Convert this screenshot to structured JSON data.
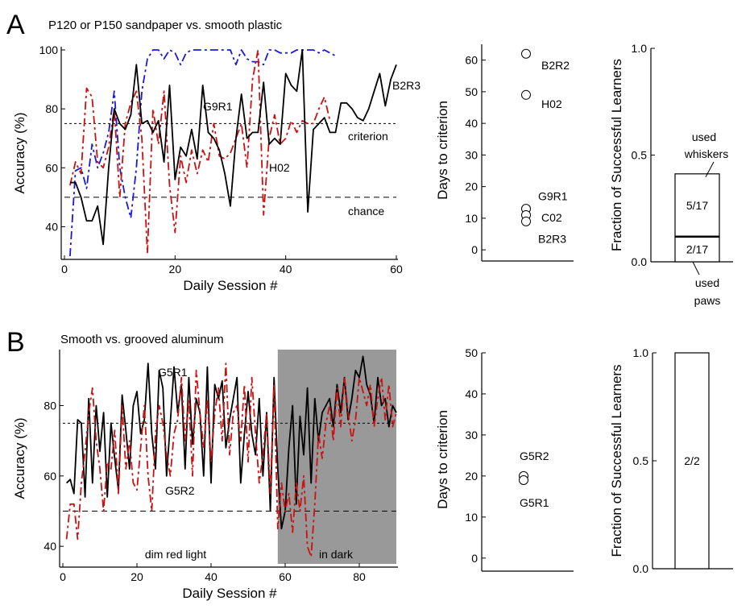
{
  "panels": [
    {
      "label": "A",
      "title": "P120 or P150 sandpaper vs. smooth plastic"
    },
    {
      "label": "B",
      "title": "Smooth vs. grooved aluminum"
    }
  ],
  "chart_data": [
    {
      "id": "A-accuracy",
      "type": "line",
      "xlabel": "Daily Session #",
      "ylabel": "Accuracy (%)",
      "xlim": [
        0,
        60
      ],
      "ylim": [
        30,
        100
      ],
      "xticks": [
        "0",
        "20",
        "40",
        "60"
      ],
      "yticks": [
        "40",
        "60",
        "80",
        "100"
      ],
      "hlines": [
        {
          "y": 75,
          "label": "criterion",
          "style": "dotted"
        },
        {
          "y": 50,
          "label": "chance",
          "style": "dashed"
        }
      ],
      "series": [
        {
          "name": "G9R1",
          "color": "#1a1ad6",
          "style": "dashdot",
          "x": [
            1,
            2,
            3,
            4,
            5,
            6,
            7,
            8,
            9,
            10,
            11,
            12,
            13,
            14,
            15,
            16,
            17,
            18,
            19,
            20,
            21,
            22,
            23,
            24,
            25,
            26,
            27,
            28,
            29,
            30,
            31,
            32,
            33,
            34,
            35,
            36,
            37,
            38,
            39,
            40,
            41,
            42,
            43,
            44,
            45,
            46,
            47,
            48,
            49
          ],
          "y": [
            30,
            59,
            60,
            53,
            68,
            60,
            65,
            72,
            86,
            60,
            50,
            43,
            60,
            86,
            97,
            100,
            100,
            97,
            100,
            99,
            95,
            99,
            100,
            100,
            100,
            100,
            100,
            100,
            100,
            100,
            95,
            100,
            97,
            96,
            96,
            95,
            100,
            100,
            99,
            99,
            99,
            100,
            100,
            100,
            100,
            99,
            100,
            99,
            98
          ]
        },
        {
          "name": "H02",
          "color": "#cc1111",
          "style": "dashdot",
          "x": [
            1,
            2,
            3,
            4,
            5,
            6,
            7,
            8,
            9,
            10,
            11,
            12,
            13,
            14,
            15,
            16,
            17,
            18,
            19,
            20,
            21,
            22,
            23,
            24,
            25,
            26,
            27,
            28,
            29,
            30,
            31,
            32,
            33,
            34,
            35,
            36,
            37,
            38,
            39,
            40,
            41,
            42,
            43,
            44,
            45,
            46,
            47,
            48
          ],
          "y": [
            54,
            62,
            58,
            87,
            84,
            62,
            60,
            67,
            80,
            50,
            75,
            82,
            86,
            70,
            31,
            80,
            68,
            86,
            54,
            38,
            64,
            55,
            66,
            58,
            66,
            62,
            75,
            64,
            63,
            65,
            70,
            75,
            60,
            90,
            100,
            44,
            70,
            78,
            68,
            70,
            76,
            72,
            76,
            75,
            75,
            80,
            84,
            76
          ]
        },
        {
          "name": "B2R3",
          "color": "#000000",
          "style": "solid",
          "x": [
            1,
            2,
            3,
            4,
            5,
            6,
            7,
            8,
            9,
            10,
            11,
            12,
            13,
            14,
            15,
            16,
            17,
            18,
            19,
            20,
            21,
            22,
            23,
            24,
            25,
            26,
            27,
            28,
            29,
            30,
            31,
            32,
            33,
            34,
            35,
            36,
            37,
            38,
            39,
            40,
            41,
            42,
            43,
            44,
            45,
            46,
            47,
            48,
            49,
            50,
            51,
            52,
            53,
            54,
            55,
            56,
            57,
            58,
            59,
            60
          ],
          "y": [
            55,
            55,
            50,
            42,
            42,
            47,
            34,
            60,
            80,
            75,
            73,
            78,
            95,
            75,
            76,
            72,
            76,
            62,
            88,
            56,
            67,
            64,
            73,
            63,
            88,
            72,
            70,
            66,
            58,
            47,
            70,
            85,
            70,
            72,
            72,
            89,
            68,
            70,
            68,
            92,
            88,
            86,
            100,
            45,
            73,
            75,
            77,
            72,
            72,
            82,
            82,
            80,
            77,
            76,
            80,
            86,
            92,
            81,
            90,
            95
          ]
        }
      ],
      "annotations": [
        "G9R1",
        "H02",
        "B2R3",
        "criterion",
        "chance"
      ]
    },
    {
      "id": "A-days",
      "type": "scatter",
      "ylabel": "Days to criterion",
      "ylim": [
        -2,
        65
      ],
      "yticks": [
        "0",
        "10",
        "20",
        "30",
        "40",
        "50",
        "60"
      ],
      "points": [
        {
          "label": "B2R2",
          "y": 62
        },
        {
          "label": "H02",
          "y": 49
        },
        {
          "label": "G9R1",
          "y": 13
        },
        {
          "label": "C02",
          "y": 11
        },
        {
          "label": "B2R3",
          "y": 9
        }
      ]
    },
    {
      "id": "A-fraction",
      "type": "bar",
      "ylabel": "Fraction of Successful Learners",
      "ylim": [
        0,
        1.0
      ],
      "yticks": [
        "0.0",
        "0.5",
        "1.0"
      ],
      "stack": [
        {
          "label": "2/17",
          "value": 0.118,
          "note": "used paws"
        },
        {
          "label": "5/17",
          "value": 0.294,
          "note": "used whiskers"
        }
      ],
      "annotations": [
        "used",
        "whiskers",
        "used",
        "paws"
      ]
    },
    {
      "id": "B-accuracy",
      "type": "line",
      "xlabel": "Daily Session #",
      "ylabel": "Accuracy (%)",
      "xlim": [
        0,
        90
      ],
      "ylim": [
        35,
        95
      ],
      "xticks": [
        "0",
        "20",
        "40",
        "60",
        "80"
      ],
      "yticks": [
        "40",
        "60",
        "80"
      ],
      "hlines": [
        {
          "y": 75,
          "style": "dotted"
        },
        {
          "y": 50,
          "style": "dashed"
        }
      ],
      "shaded_region": {
        "x": [
          58,
          90
        ],
        "label": "in dark"
      },
      "region_labels": [
        "dim red light",
        "in dark"
      ],
      "series": [
        {
          "name": "G5R1",
          "color": "#000000",
          "style": "solid",
          "x": [
            1,
            2,
            3,
            4,
            5,
            6,
            7,
            8,
            9,
            10,
            11,
            12,
            13,
            14,
            15,
            16,
            17,
            18,
            19,
            20,
            21,
            22,
            23,
            24,
            25,
            26,
            27,
            28,
            29,
            30,
            31,
            32,
            33,
            34,
            35,
            36,
            37,
            38,
            39,
            40,
            41,
            42,
            43,
            44,
            45,
            46,
            47,
            48,
            49,
            50,
            51,
            52,
            53,
            54,
            55,
            56,
            57,
            58,
            59,
            60,
            61,
            62,
            63,
            64,
            65,
            66,
            67,
            68,
            69,
            70,
            71,
            72,
            73,
            74,
            75,
            76,
            77,
            78,
            79,
            80,
            81,
            82,
            83,
            84,
            85,
            86,
            87,
            88,
            89,
            90
          ],
          "y": [
            58,
            59,
            55,
            76,
            75,
            54,
            82,
            58,
            80,
            67,
            78,
            54,
            75,
            65,
            56,
            83,
            73,
            62,
            80,
            84,
            72,
            76,
            92,
            72,
            62,
            90,
            85,
            60,
            75,
            91,
            78,
            86,
            62,
            88,
            69,
            82,
            78,
            60,
            91,
            58,
            86,
            82,
            87,
            68,
            76,
            82,
            88,
            58,
            72,
            84,
            72,
            66,
            82,
            60,
            78,
            50,
            88,
            62,
            45,
            50,
            68,
            80,
            52,
            77,
            66,
            85,
            58,
            82,
            70,
            78,
            80,
            82,
            74,
            86,
            78,
            88,
            76,
            82,
            90,
            88,
            94,
            86,
            83,
            75,
            88,
            80,
            82,
            74,
            80,
            78
          ]
        },
        {
          "name": "G5R2",
          "color": "#cc1111",
          "style": "dashdot",
          "x": [
            1,
            2,
            3,
            4,
            5,
            6,
            7,
            8,
            9,
            10,
            11,
            12,
            13,
            14,
            15,
            16,
            17,
            18,
            19,
            20,
            21,
            22,
            23,
            24,
            25,
            26,
            27,
            28,
            29,
            30,
            31,
            32,
            33,
            34,
            35,
            36,
            37,
            38,
            39,
            40,
            41,
            42,
            43,
            44,
            45,
            46,
            47,
            48,
            49,
            50,
            51,
            52,
            53,
            54,
            55,
            56,
            57,
            58,
            59,
            60,
            61,
            62,
            63,
            64,
            65,
            66,
            67,
            68,
            69,
            70,
            71,
            72,
            73,
            74,
            75,
            76,
            77,
            78,
            79,
            80,
            81,
            82,
            83,
            84,
            85,
            86,
            87,
            88,
            89,
            90
          ],
          "y": [
            42,
            52,
            52,
            42,
            58,
            67,
            78,
            85,
            70,
            62,
            50,
            64,
            62,
            73,
            55,
            80,
            62,
            70,
            58,
            56,
            68,
            80,
            60,
            50,
            72,
            80,
            75,
            66,
            60,
            72,
            76,
            88,
            70,
            82,
            60,
            90,
            78,
            68,
            82,
            64,
            78,
            85,
            70,
            92,
            66,
            78,
            80,
            70,
            86,
            64,
            88,
            72,
            58,
            66,
            78,
            55,
            86,
            45,
            58,
            50,
            55,
            44,
            58,
            50,
            60,
            40,
            37,
            52,
            72,
            65,
            75,
            80,
            70,
            85,
            74,
            88,
            78,
            70,
            76,
            88,
            84,
            80,
            86,
            74,
            82,
            88,
            76,
            86,
            74,
            78
          ]
        }
      ],
      "annotations": [
        "G5R1",
        "G5R2"
      ]
    },
    {
      "id": "B-days",
      "type": "scatter",
      "ylabel": "Days to criterion",
      "ylim": [
        -2,
        50
      ],
      "yticks": [
        "0",
        "10",
        "20",
        "30",
        "40",
        "50"
      ],
      "points": [
        {
          "label": "G5R2",
          "y": 20
        },
        {
          "label": "G5R1",
          "y": 19
        }
      ]
    },
    {
      "id": "B-fraction",
      "type": "bar",
      "ylabel": "Fraction of Successful Learners",
      "ylim": [
        0,
        1.0
      ],
      "yticks": [
        "0.0",
        "0.5",
        "1.0"
      ],
      "stack": [
        {
          "label": "2/2",
          "value": 1.0
        }
      ]
    }
  ]
}
